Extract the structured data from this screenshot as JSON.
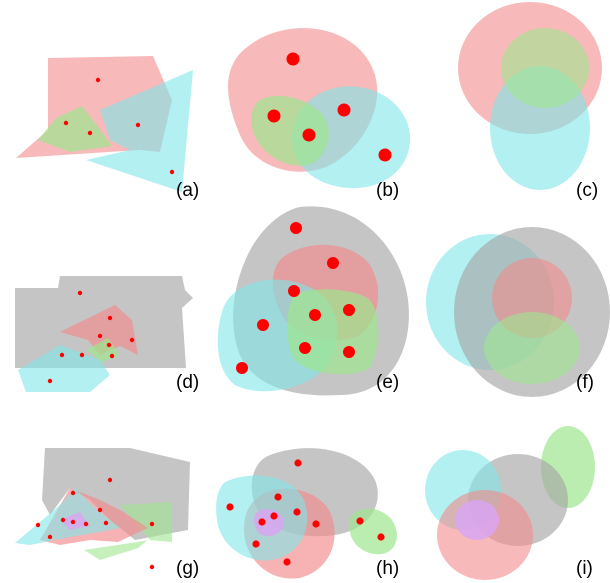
{
  "panels": [
    {
      "label": "(a)"
    },
    {
      "label": "(b)"
    },
    {
      "label": "(c)"
    },
    {
      "label": "(d)"
    },
    {
      "label": "(e)"
    },
    {
      "label": "(f)"
    },
    {
      "label": "(g)"
    },
    {
      "label": "(h)"
    },
    {
      "label": "(i)"
    }
  ],
  "colors": {
    "red": "#f28b8b",
    "cyan": "#7fe6ea",
    "green": "#9ee68f",
    "gray": "#a6a6a6",
    "purple": "#d9a6f2",
    "dot": "#ff0000"
  }
}
